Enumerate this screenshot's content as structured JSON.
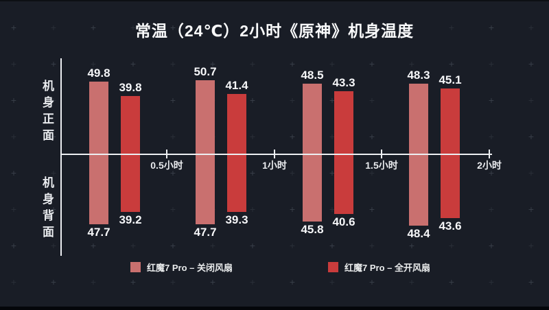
{
  "title": "常温（24℃）2小时《原神》机身温度",
  "axis": {
    "front_label": "机身正面",
    "back_label": "机身背面",
    "tick_labels": [
      "0.5小时",
      "1小时",
      "1.5小时",
      "2小时"
    ]
  },
  "legend": {
    "items": [
      {
        "label": "红魔7 Pro – 关闭风扇",
        "color": "#c9706f"
      },
      {
        "label": "红魔7 Pro – 全开风扇",
        "color": "#c93c3c"
      }
    ]
  },
  "chart_data": {
    "type": "bar",
    "title": "常温（24℃）2小时《原神》机身温度",
    "orientation": "diverging-vertical",
    "categories": [
      "0.5小时",
      "1小时",
      "1.5小时",
      "2小时"
    ],
    "upper_section_label": "机身正面",
    "lower_section_label": "机身背面",
    "series": [
      {
        "name": "红魔7 Pro – 关闭风扇",
        "color": "#c9706f",
        "front_values": [
          49.8,
          50.7,
          48.5,
          48.3
        ],
        "back_values": [
          47.7,
          47.7,
          45.8,
          48.4
        ]
      },
      {
        "name": "红魔7 Pro – 全开风扇",
        "color": "#c93c3c",
        "front_values": [
          39.8,
          41.4,
          43.3,
          45.1
        ],
        "back_values": [
          39.2,
          39.3,
          40.6,
          43.6
        ]
      }
    ],
    "legend_position": "bottom",
    "grid": false
  },
  "colors": {
    "background": "#191d26",
    "axis_line": "#edeff2",
    "label_text": "#f6f7f9",
    "pattern_plus": "#454b55",
    "series_fan_off": "#c9706f",
    "series_fan_on": "#c93c3c"
  }
}
